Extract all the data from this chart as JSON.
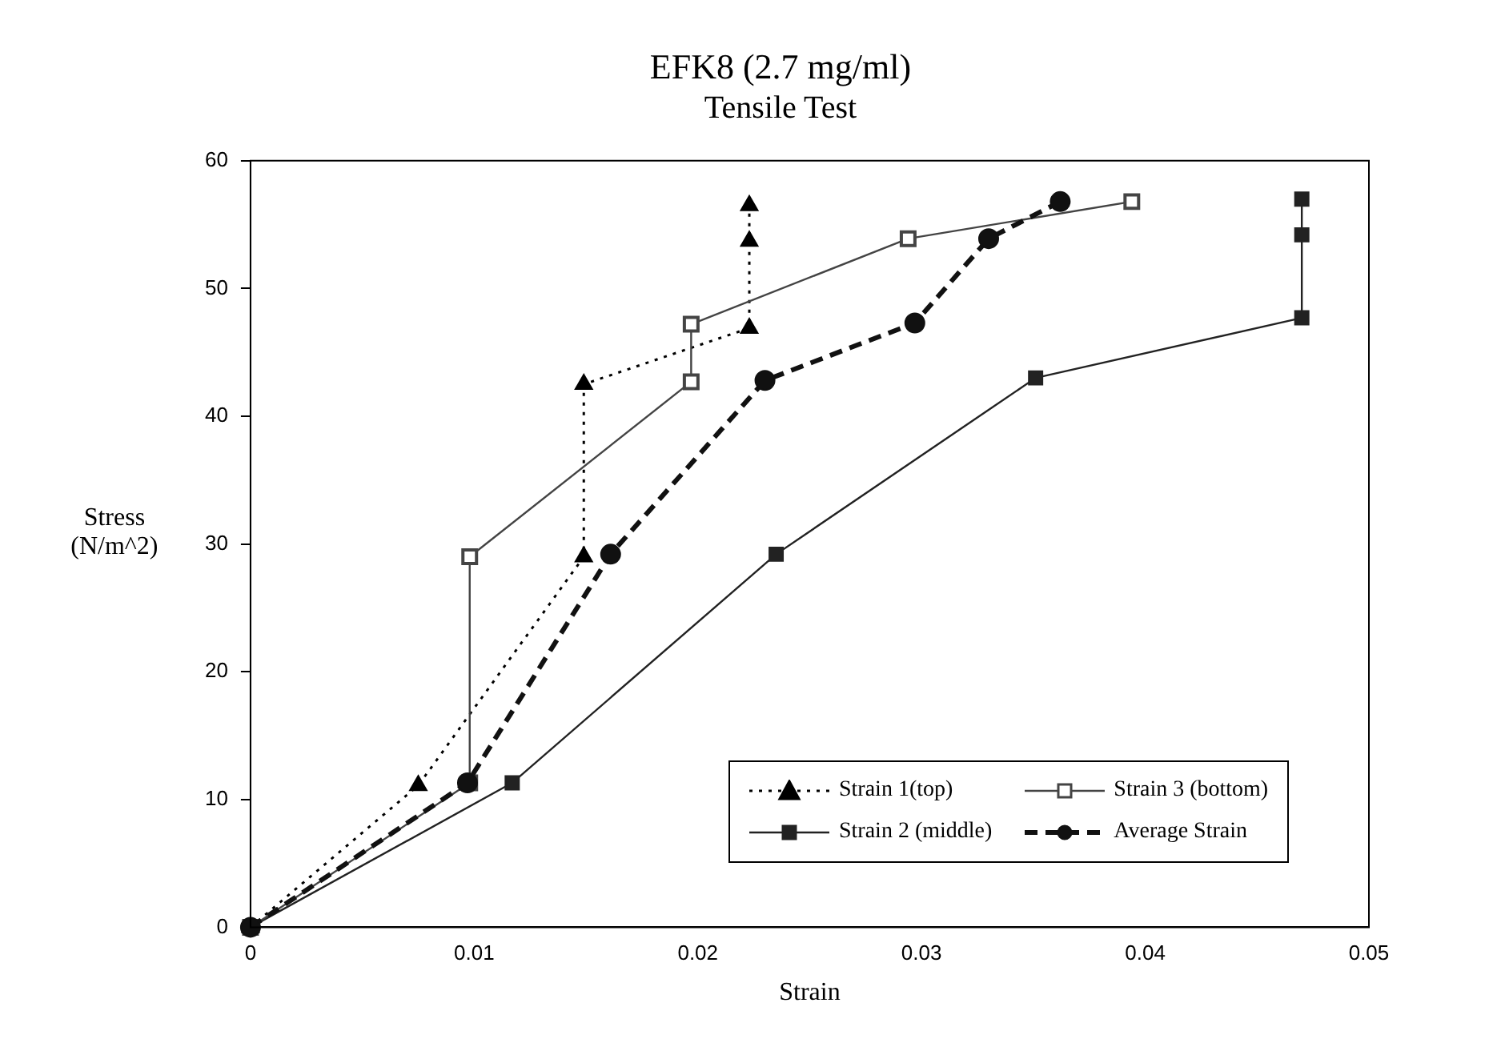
{
  "chart_data": {
    "type": "line",
    "title": "EFK8 (2.7 mg/ml)",
    "subtitle": "Tensile Test",
    "xlabel": "Strain",
    "ylabel": "Stress (N/m^2)",
    "xlim": [
      0,
      0.05
    ],
    "xticks": [
      0,
      0.01,
      0.02,
      0.03,
      0.04,
      0.05
    ],
    "ylim": [
      0,
      60
    ],
    "yticks": [
      0,
      10,
      20,
      30,
      40,
      50,
      60
    ],
    "grid": false,
    "legend": "bottom right",
    "series": [
      {
        "name": "Strain 1(top)",
        "color": "#000000",
        "marker": "triangle",
        "line_style": "dotted",
        "x": [
          0,
          0.0075,
          0.0149,
          0.0149,
          0.0223,
          0.0223,
          0.0223
        ],
        "values": [
          0,
          11.1,
          29.0,
          42.5,
          46.9,
          53.7,
          56.5
        ]
      },
      {
        "name": "Strain 2 (middle)",
        "color": "#222222",
        "marker": "square",
        "line_style": "solid",
        "x": [
          0,
          0.0117,
          0.0235,
          0.0351,
          0.047,
          0.047,
          0.047
        ],
        "values": [
          0,
          11.3,
          29.2,
          43.0,
          47.7,
          54.2,
          57.0
        ]
      },
      {
        "name": "Strain 3 (bottom)",
        "color": "#444444",
        "marker": "square",
        "line_style": "solid",
        "x": [
          0,
          0.0098,
          0.0098,
          0.0197,
          0.0197,
          0.0294,
          0.0394
        ],
        "values": [
          0,
          11.3,
          29.0,
          42.7,
          47.2,
          53.9,
          56.8
        ]
      },
      {
        "name": "Average Strain",
        "color": "#111111",
        "marker": "circle",
        "line_style": "dashed",
        "x": [
          0,
          0.0097,
          0.0161,
          0.023,
          0.0297,
          0.033,
          0.0362
        ],
        "values": [
          0,
          11.3,
          29.2,
          42.8,
          47.3,
          53.9,
          56.8
        ]
      }
    ]
  }
}
